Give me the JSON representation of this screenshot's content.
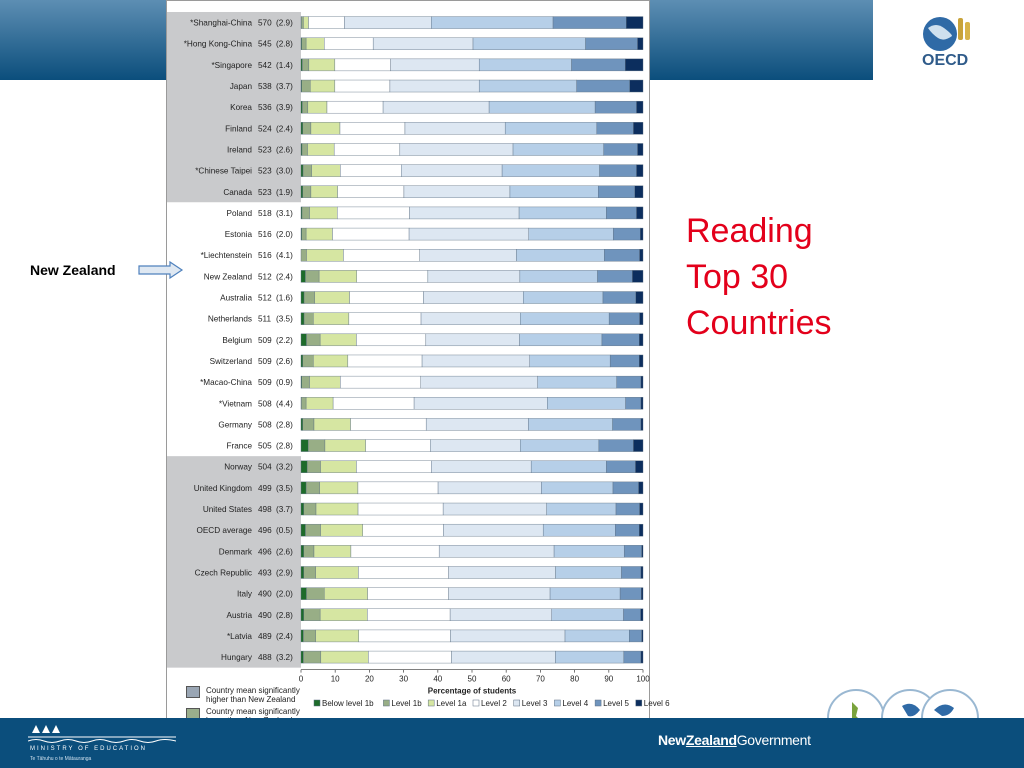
{
  "slide": {
    "heading_line1": "Reading",
    "heading_line2": "Top 30",
    "heading_line3": "Countries",
    "callout": "New Zealand",
    "oecd_label": "OECD",
    "ministry_title": "MINISTRY OF EDUCATION",
    "ministry_subtitle": "Te Tāhuhu o te Mātauranga",
    "govt_new": "New",
    "govt_zealand": "Zealand",
    "govt_government": "Government",
    "heading_color": "#e3001b",
    "band_color": "#0b4e7c"
  },
  "legend_note": {
    "higher": "Country mean significantly higher than New Zealand",
    "lower": "Country mean significantly lower than New Zealand",
    "higher_color": "#9aa6b4",
    "lower_color": "#9aae8c"
  },
  "chart_data": {
    "type": "bar",
    "orientation": "horizontal-stacked-100",
    "title": "",
    "xlabel": "Percentage of students",
    "ylabel": "",
    "xlim": [
      0,
      100
    ],
    "x_ticks": [
      0,
      10,
      20,
      30,
      40,
      50,
      60,
      70,
      80,
      90,
      100
    ],
    "grid": false,
    "legend_position": "bottom",
    "group_shading": [
      {
        "from": 0,
        "to": 8,
        "color": "#c9cacc"
      },
      {
        "from": 9,
        "to": 20,
        "color": "#ffffff"
      },
      {
        "from": 21,
        "to": 30,
        "color": "#c9cacc"
      }
    ],
    "series": [
      {
        "name": "Below level 1b",
        "color": "#1d6b2a"
      },
      {
        "name": "Level 1b",
        "color": "#98ae86"
      },
      {
        "name": "Level 1a",
        "color": "#d6e6a2"
      },
      {
        "name": "Level 2",
        "color": "#ffffff"
      },
      {
        "name": "Level 3",
        "color": "#dde7f2"
      },
      {
        "name": "Level 4",
        "color": "#b6cfe8"
      },
      {
        "name": "Level 5",
        "color": "#6f94bd"
      },
      {
        "name": "Level 6",
        "color": "#0c2e5e"
      }
    ],
    "countries": [
      {
        "label": "*Shanghai-China",
        "score": "570",
        "se": "(2.9)",
        "segments": [
          0.1,
          0.6,
          1.5,
          10.5,
          25.4,
          35.6,
          21.4,
          4.9
        ]
      },
      {
        "label": "*Hong Kong-China",
        "score": "545",
        "se": "(2.8)",
        "segments": [
          0.2,
          1.3,
          5.3,
          14.3,
          29.2,
          32.9,
          15.2,
          1.6
        ]
      },
      {
        "label": "*Singapore",
        "score": "542",
        "se": "(1.4)",
        "segments": [
          0.4,
          1.9,
          7.6,
          16.3,
          25.9,
          27.0,
          15.7,
          5.2
        ]
      },
      {
        "label": "Japan",
        "score": "538",
        "se": "(3.7)",
        "segments": [
          0.2,
          2.5,
          7.2,
          16.1,
          26.1,
          28.5,
          15.5,
          3.9
        ]
      },
      {
        "label": "Korea",
        "score": "536",
        "se": "(3.9)",
        "segments": [
          0.4,
          1.6,
          5.6,
          16.4,
          31.0,
          31.0,
          12.1,
          1.9
        ]
      },
      {
        "label": "Finland",
        "score": "524",
        "se": "(2.4)",
        "segments": [
          0.5,
          2.4,
          8.5,
          19.0,
          29.3,
          26.8,
          10.7,
          2.8
        ]
      },
      {
        "label": "Ireland",
        "score": "523",
        "se": "(2.6)",
        "segments": [
          0.3,
          1.6,
          7.8,
          19.2,
          33.1,
          26.5,
          9.9,
          1.6
        ]
      },
      {
        "label": "*Chinese Taipei",
        "score": "523",
        "se": "(3.0)",
        "segments": [
          0.6,
          2.5,
          8.4,
          17.8,
          29.5,
          28.5,
          10.8,
          1.9
        ]
      },
      {
        "label": "Canada",
        "score": "523",
        "se": "(1.9)",
        "segments": [
          0.5,
          2.4,
          7.8,
          19.4,
          31.0,
          25.8,
          10.7,
          2.4
        ]
      },
      {
        "label": "Poland",
        "score": "518",
        "se": "(3.1)",
        "segments": [
          0.3,
          2.2,
          8.1,
          21.1,
          32.0,
          25.5,
          8.8,
          1.9
        ]
      },
      {
        "label": "Estonia",
        "score": "516",
        "se": "(2.0)",
        "segments": [
          0.2,
          1.3,
          7.7,
          22.4,
          35.0,
          24.7,
          7.9,
          0.8
        ]
      },
      {
        "label": "*Liechtenstein",
        "score": "516",
        "se": "(4.1)",
        "segments": [
          0.0,
          1.6,
          10.8,
          22.3,
          28.3,
          25.7,
          10.3,
          1.0
        ]
      },
      {
        "label": "New Zealand",
        "score": "512",
        "se": "(2.4)",
        "segments": [
          1.3,
          4.0,
          11.0,
          20.8,
          26.9,
          22.7,
          10.2,
          3.1
        ]
      },
      {
        "label": "Australia",
        "score": "512",
        "se": "(1.6)",
        "segments": [
          0.9,
          3.1,
          10.2,
          21.6,
          29.2,
          23.3,
          9.6,
          2.1
        ]
      },
      {
        "label": "Netherlands",
        "score": "511",
        "se": "(3.5)",
        "segments": [
          0.9,
          2.7,
          10.4,
          21.1,
          29.0,
          26.0,
          8.9,
          1.0
        ]
      },
      {
        "label": "Belgium",
        "score": "509",
        "se": "(2.2)",
        "segments": [
          1.6,
          4.0,
          10.6,
          20.3,
          27.4,
          24.1,
          10.9,
          1.1
        ]
      },
      {
        "label": "Switzerland",
        "score": "509",
        "se": "(2.6)",
        "segments": [
          0.5,
          3.1,
          10.1,
          21.7,
          31.5,
          23.5,
          8.5,
          1.1
        ]
      },
      {
        "label": "*Macao-China",
        "score": "509",
        "se": "(0.9)",
        "segments": [
          0.2,
          2.3,
          9.0,
          23.5,
          34.2,
          23.1,
          7.1,
          0.6
        ]
      },
      {
        "label": "*Vietnam",
        "score": "508",
        "se": "(4.4)",
        "segments": [
          0.1,
          1.4,
          7.9,
          23.7,
          39.0,
          22.9,
          4.5,
          0.6
        ]
      },
      {
        "label": "Germany",
        "score": "508",
        "se": "(2.8)",
        "segments": [
          0.5,
          3.3,
          10.7,
          22.1,
          29.9,
          24.6,
          8.3,
          0.6
        ]
      },
      {
        "label": "France",
        "score": "505",
        "se": "(2.8)",
        "segments": [
          2.1,
          4.9,
          11.9,
          18.9,
          26.3,
          23.0,
          10.1,
          2.8
        ]
      },
      {
        "label": "Norway",
        "score": "504",
        "se": "(3.2)",
        "segments": [
          1.8,
          3.9,
          10.5,
          21.9,
          29.2,
          22.0,
          8.5,
          2.2
        ]
      },
      {
        "label": "United Kingdom",
        "score": "499",
        "se": "(3.5)",
        "segments": [
          1.5,
          4.0,
          11.2,
          23.5,
          30.3,
          21.0,
          7.5,
          1.3
        ]
      },
      {
        "label": "United States",
        "score": "498",
        "se": "(3.7)",
        "segments": [
          0.8,
          3.6,
          12.3,
          24.9,
          30.3,
          20.3,
          6.9,
          1.0
        ]
      },
      {
        "label": "OECD average",
        "score": "496",
        "se": "(0.5)",
        "segments": [
          1.3,
          4.4,
          12.3,
          23.5,
          29.1,
          21.0,
          7.0,
          1.1
        ]
      },
      {
        "label": "Denmark",
        "score": "496",
        "se": "(2.6)",
        "segments": [
          0.8,
          3.0,
          10.8,
          25.8,
          33.6,
          20.5,
          5.1,
          0.4
        ]
      },
      {
        "label": "Czech Republic",
        "score": "493",
        "se": "(2.9)",
        "segments": [
          0.8,
          3.5,
          12.5,
          26.4,
          31.3,
          19.3,
          5.7,
          0.6
        ]
      },
      {
        "label": "Italy",
        "score": "490",
        "se": "(2.0)",
        "segments": [
          1.6,
          5.2,
          12.7,
          23.7,
          29.7,
          20.5,
          6.2,
          0.5
        ]
      },
      {
        "label": "Austria",
        "score": "490",
        "se": "(2.8)",
        "segments": [
          0.8,
          4.8,
          13.8,
          24.2,
          29.7,
          21.0,
          5.0,
          0.7
        ]
      },
      {
        "label": "*Latvia",
        "score": "489",
        "se": "(2.4)",
        "segments": [
          0.7,
          3.6,
          12.6,
          26.8,
          33.5,
          18.8,
          3.6,
          0.4
        ]
      },
      {
        "label": "Hungary",
        "score": "488",
        "se": "(3.2)",
        "segments": [
          0.7,
          5.1,
          13.9,
          24.3,
          30.4,
          20.0,
          5.0,
          0.6
        ]
      }
    ]
  }
}
